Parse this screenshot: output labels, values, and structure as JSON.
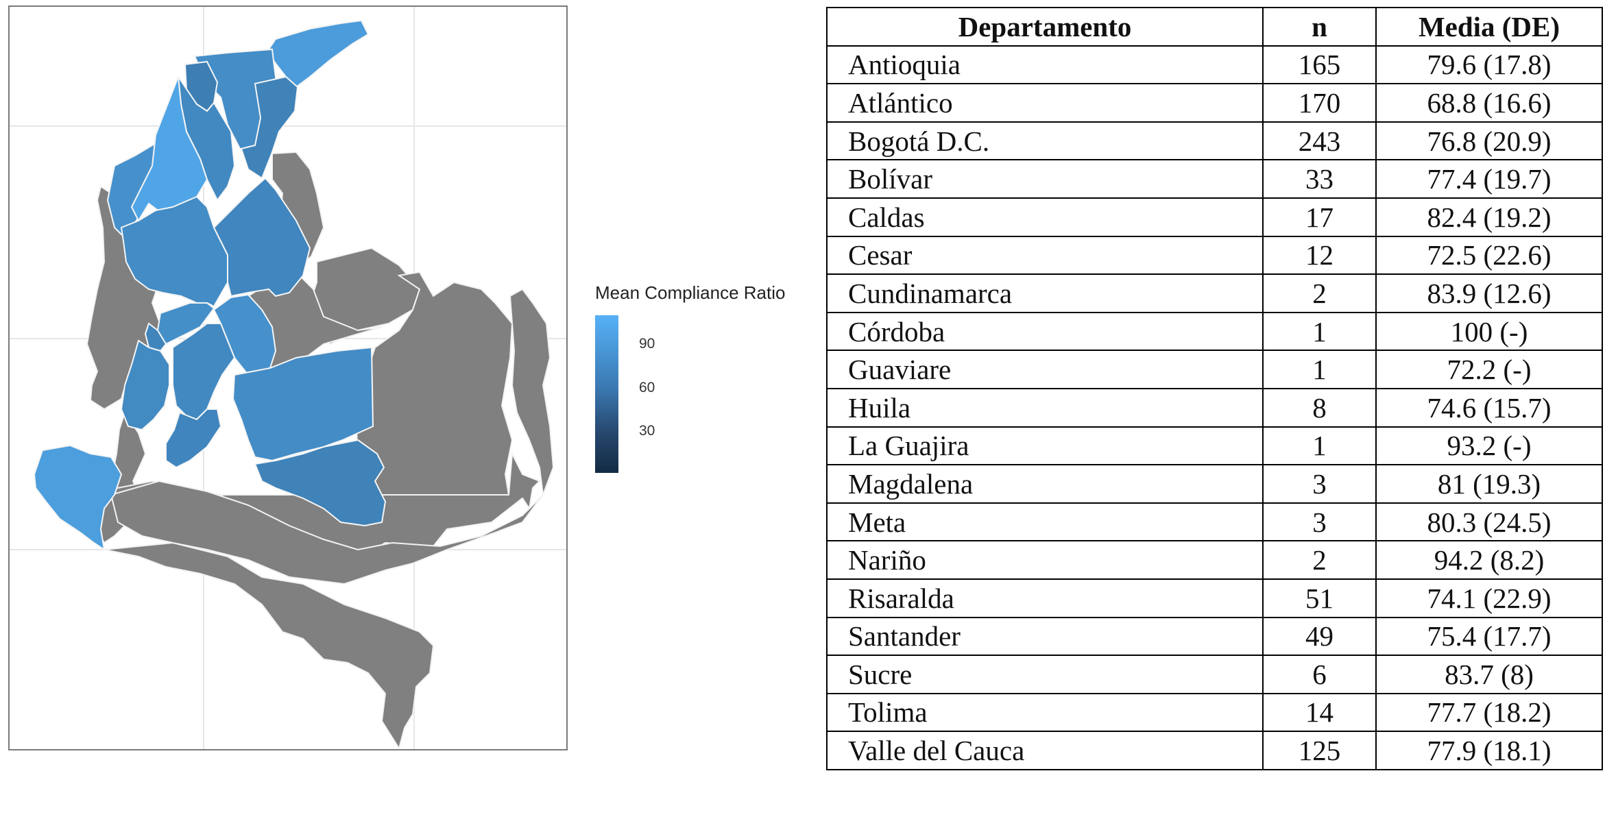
{
  "map": {
    "legend_title": "Mean Compliance Ratio",
    "legend_ticks": [
      {
        "value": 90,
        "label": "90"
      },
      {
        "value": 60,
        "label": "60"
      },
      {
        "value": 30,
        "label": "30"
      }
    ],
    "scale": {
      "low_color": "#132b43",
      "high_color": "#56b1f7",
      "no_data_color": "#808080",
      "min": 1,
      "max": 110
    },
    "regions": [
      {
        "name": "La Guajira",
        "value": 93.2
      },
      {
        "name": "Magdalena",
        "value": 81
      },
      {
        "name": "Atlántico",
        "value": 68.8
      },
      {
        "name": "Cesar",
        "value": 72.5
      },
      {
        "name": "Bolívar",
        "value": 77.4
      },
      {
        "name": "Sucre",
        "value": 83.7
      },
      {
        "name": "Córdoba",
        "value": 100
      },
      {
        "name": "Antioquia",
        "value": 79.6
      },
      {
        "name": "Santander",
        "value": 75.4
      },
      {
        "name": "Caldas",
        "value": 82.4
      },
      {
        "name": "Risaralda",
        "value": 74.1
      },
      {
        "name": "Cundinamarca",
        "value": 83.9
      },
      {
        "name": "Tolima",
        "value": 77.7
      },
      {
        "name": "Valle del Cauca",
        "value": 77.9
      },
      {
        "name": "Huila",
        "value": 74.6
      },
      {
        "name": "Meta",
        "value": 80.3
      },
      {
        "name": "Guaviare",
        "value": 72.2
      },
      {
        "name": "Nariño",
        "value": 94.2
      }
    ]
  },
  "table": {
    "headers": [
      "Departamento",
      "n",
      "Media (DE)"
    ],
    "rows": [
      [
        "Antioquia",
        "165",
        "79.6 (17.8)"
      ],
      [
        "Atlántico",
        "170",
        "68.8 (16.6)"
      ],
      [
        "Bogotá D.C.",
        "243",
        "76.8 (20.9)"
      ],
      [
        "Bolívar",
        "33",
        "77.4 (19.7)"
      ],
      [
        "Caldas",
        "17",
        "82.4 (19.2)"
      ],
      [
        "Cesar",
        "12",
        "72.5 (22.6)"
      ],
      [
        "Cundinamarca",
        "2",
        "83.9 (12.6)"
      ],
      [
        "Córdoba",
        "1",
        "100 (-)"
      ],
      [
        "Guaviare",
        "1",
        "72.2 (-)"
      ],
      [
        "Huila",
        "8",
        "74.6 (15.7)"
      ],
      [
        "La Guajira",
        "1",
        "93.2 (-)"
      ],
      [
        "Magdalena",
        "3",
        "81 (19.3)"
      ],
      [
        "Meta",
        "3",
        "80.3 (24.5)"
      ],
      [
        "Nariño",
        "2",
        "94.2 (8.2)"
      ],
      [
        "Risaralda",
        "51",
        "74.1 (22.9)"
      ],
      [
        "Santander",
        "49",
        "75.4 (17.7)"
      ],
      [
        "Sucre",
        "6",
        "83.7 (8)"
      ],
      [
        "Tolima",
        "14",
        "77.7 (18.2)"
      ],
      [
        "Valle del Cauca",
        "125",
        "77.9 (18.1)"
      ]
    ]
  }
}
